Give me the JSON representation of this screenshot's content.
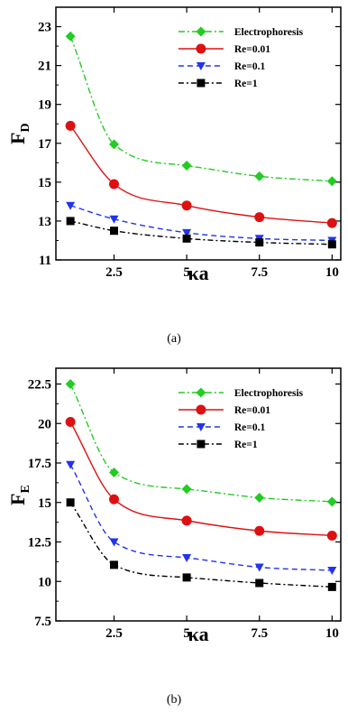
{
  "figures": [
    {
      "caption": "(a)",
      "ylabel_main": "F",
      "ylabel_sub": "D",
      "xlabel": "κa",
      "chart_data": {
        "type": "line",
        "x": [
          1,
          2.5,
          5,
          7.5,
          10
        ],
        "xlim": [
          0.5,
          10.3
        ],
        "ylim": [
          11,
          24
        ],
        "xticks": [
          2.5,
          5,
          7.5,
          10
        ],
        "xtick_labels": [
          "2.5",
          "5",
          "7.5",
          "10"
        ],
        "yticks": [
          11,
          13,
          15,
          17,
          19,
          21,
          23
        ],
        "ytick_labels": [
          "11",
          "13",
          "15",
          "17",
          "19",
          "21",
          "23"
        ],
        "legend_position": "top-right",
        "grid": false,
        "series": [
          {
            "name": "Electrophoresis",
            "values": [
              22.5,
              16.95,
              15.85,
              15.3,
              15.05
            ],
            "color": "#22cc22",
            "dash": "7,3,2,3",
            "marker": "diamond"
          },
          {
            "name": "Re=0.01",
            "values": [
              17.9,
              14.9,
              13.8,
              13.2,
              12.9
            ],
            "color": "#dd1111",
            "dash": "",
            "marker": "circle"
          },
          {
            "name": "Re=0.1",
            "values": [
              13.8,
              13.1,
              12.4,
              12.1,
              12.0
            ],
            "color": "#2233ee",
            "dash": "6,4",
            "marker": "triangle-down"
          },
          {
            "name": "Re=1",
            "values": [
              13.0,
              12.5,
              12.1,
              11.9,
              11.8
            ],
            "color": "#000000",
            "dash": "6,3,2,3",
            "marker": "square"
          }
        ]
      }
    },
    {
      "caption": "(b)",
      "ylabel_main": "F",
      "ylabel_sub": "E",
      "xlabel": "κa",
      "chart_data": {
        "type": "line",
        "x": [
          1,
          2.5,
          5,
          7.5,
          10
        ],
        "xlim": [
          0.5,
          10.3
        ],
        "ylim": [
          7.5,
          23.5
        ],
        "xticks": [
          2.5,
          5,
          7.5,
          10
        ],
        "xtick_labels": [
          "2.5",
          "5",
          "7.5",
          "10"
        ],
        "yticks": [
          7.5,
          10,
          12.5,
          15,
          17.5,
          20,
          22.5
        ],
        "ytick_labels": [
          "7.5",
          "10",
          "12.5",
          "15",
          "17.5",
          "20",
          "22.5"
        ],
        "legend_position": "top-right",
        "grid": false,
        "series": [
          {
            "name": "Electrophoresis",
            "values": [
              22.5,
              16.9,
              15.85,
              15.3,
              15.05
            ],
            "color": "#22cc22",
            "dash": "7,3,2,3",
            "marker": "diamond"
          },
          {
            "name": "Re=0.01",
            "values": [
              20.1,
              15.2,
              13.85,
              13.2,
              12.9
            ],
            "color": "#dd1111",
            "dash": "",
            "marker": "circle"
          },
          {
            "name": "Re=0.1",
            "values": [
              17.4,
              12.5,
              11.5,
              10.9,
              10.7
            ],
            "color": "#2233ee",
            "dash": "6,4",
            "marker": "triangle-down"
          },
          {
            "name": "Re=1",
            "values": [
              15.0,
              11.05,
              10.25,
              9.9,
              9.65
            ],
            "color": "#000000",
            "dash": "6,3,2,3",
            "marker": "square"
          }
        ]
      }
    }
  ]
}
